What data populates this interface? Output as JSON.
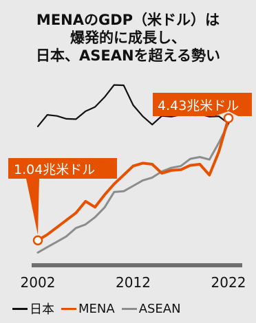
{
  "title_lines": [
    "MENAのGDP（米ドル）は",
    "爆発的に成長し、",
    "日本、ASEANを超える勢い"
  ],
  "chart_data": {
    "type": "line",
    "x": [
      2002,
      2003,
      2004,
      2005,
      2006,
      2007,
      2008,
      2009,
      2010,
      2011,
      2012,
      2013,
      2014,
      2015,
      2016,
      2017,
      2018,
      2019,
      2020,
      2021,
      2022
    ],
    "xticks": [
      "2002",
      "2012",
      "2022"
    ],
    "series": [
      {
        "name": "日本",
        "color": "#111111",
        "values": [
          4.2,
          4.52,
          4.49,
          4.41,
          4.4,
          4.62,
          4.74,
          5.01,
          5.35,
          5.34,
          4.79,
          4.48,
          4.25,
          4.49,
          4.47,
          4.52,
          4.54,
          4.54,
          4.47,
          4.48,
          4.28
        ]
      },
      {
        "name": "MENA",
        "color": "#e65100",
        "values": [
          1.04,
          1.2,
          1.4,
          1.6,
          1.8,
          2.12,
          1.96,
          2.3,
          2.6,
          2.85,
          3.1,
          3.18,
          3.15,
          2.9,
          2.98,
          3.0,
          3.12,
          3.15,
          2.85,
          3.5,
          4.43
        ]
      },
      {
        "name": "ASEAN",
        "color": "#8c8c8c",
        "values": [
          0.7,
          0.85,
          1.0,
          1.15,
          1.38,
          1.48,
          1.68,
          1.95,
          2.38,
          2.4,
          2.55,
          2.7,
          2.78,
          2.95,
          3.05,
          3.1,
          3.3,
          3.35,
          3.28,
          3.75,
          4.28
        ]
      }
    ],
    "annotations": [
      {
        "text": "1.04兆米ドル",
        "series": "MENA",
        "x": 2002
      },
      {
        "text": "4.43兆米ドル",
        "series": "MENA",
        "x": 2022
      }
    ],
    "ylim": [
      0.5,
      5.8
    ]
  },
  "legend": [
    {
      "label": "日本",
      "color": "#111111"
    },
    {
      "label": "MENA",
      "color": "#e65100"
    },
    {
      "label": "ASEAN",
      "color": "#8c8c8c"
    }
  ]
}
